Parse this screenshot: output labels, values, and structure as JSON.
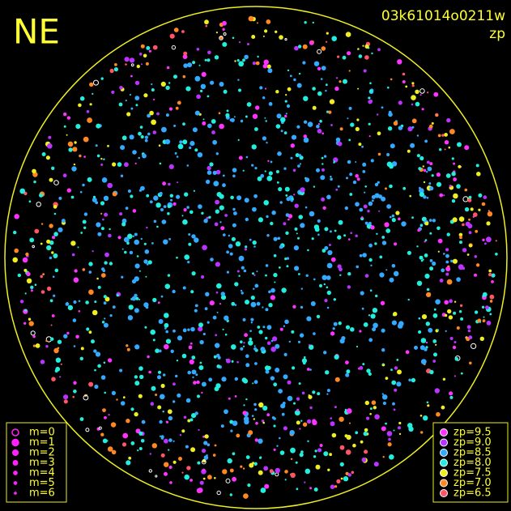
{
  "header": {
    "title": "NE",
    "image_id": "03k61014o0211w",
    "mode": "zp"
  },
  "legend_magnitude": {
    "color": "#ff22ff",
    "items": [
      "m=0",
      "m=1",
      "m=2",
      "m=3",
      "m=4",
      "m=5",
      "m=6"
    ]
  },
  "legend_zp": {
    "items": [
      {
        "label": "zp=9.5",
        "color": "#ff33ff"
      },
      {
        "label": "zp=9.0",
        "color": "#bb33ff"
      },
      {
        "label": "zp=8.5",
        "color": "#33aaff"
      },
      {
        "label": "zp=8.0",
        "color": "#22eedd"
      },
      {
        "label": "zp=7.5",
        "color": "#eeee22"
      },
      {
        "label": "zp=7.0",
        "color": "#ff8822"
      },
      {
        "label": "zp=6.5",
        "color": "#ff5566"
      }
    ]
  }
}
